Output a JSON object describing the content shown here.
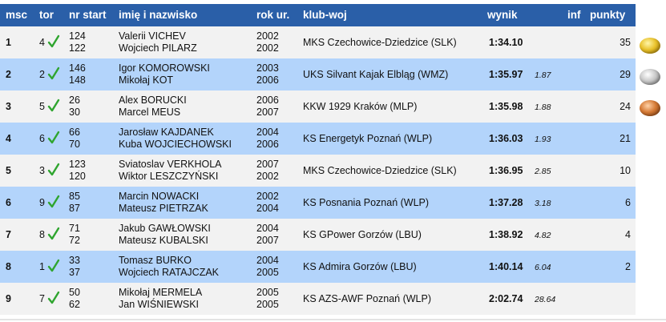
{
  "header": {
    "msc": "msc",
    "tor": "tor",
    "nr_start": "nr start",
    "name": "imię i nazwisko",
    "year": "rok ur.",
    "club": "klub-woj",
    "result": "wynik",
    "inf": "inf",
    "points": "punkty"
  },
  "rows": [
    {
      "pos": "1",
      "lane": "4",
      "nums": [
        "124",
        "122"
      ],
      "names": [
        "Valerii VICHEV",
        "Wojciech PILARZ"
      ],
      "years": [
        "2002",
        "2002"
      ],
      "club": "MKS Czechowice-Dziedzice (SLK)",
      "time": "1:34.10",
      "gap": "",
      "points": "35",
      "medal": "gold"
    },
    {
      "pos": "2",
      "lane": "2",
      "nums": [
        "146",
        "148"
      ],
      "names": [
        "Igor KOMOROWSKI",
        "Mikołaj KOT"
      ],
      "years": [
        "2003",
        "2006"
      ],
      "club": "UKS Silvant Kajak Elbląg (WMZ)",
      "time": "1:35.97",
      "gap": "1.87",
      "points": "29",
      "medal": "silver"
    },
    {
      "pos": "3",
      "lane": "5",
      "nums": [
        "26",
        "30"
      ],
      "names": [
        "Alex BORUCKI",
        "Marcel MEUS"
      ],
      "years": [
        "2006",
        "2007"
      ],
      "club": "KKW 1929 Kraków (MLP)",
      "time": "1:35.98",
      "gap": "1.88",
      "points": "24",
      "medal": "bronze"
    },
    {
      "pos": "4",
      "lane": "6",
      "nums": [
        "66",
        "70"
      ],
      "names": [
        "Jarosław KAJDANEK",
        "Kuba WOJCIECHOWSKI"
      ],
      "years": [
        "2004",
        "2006"
      ],
      "club": "KS Energetyk Poznań (WLP)",
      "time": "1:36.03",
      "gap": "1.93",
      "points": "21",
      "medal": ""
    },
    {
      "pos": "5",
      "lane": "3",
      "nums": [
        "123",
        "120"
      ],
      "names": [
        "Sviatoslav VERKHOLA",
        "Wiktor LESZCZYŃSKI"
      ],
      "years": [
        "2007",
        "2002"
      ],
      "club": "MKS Czechowice-Dziedzice (SLK)",
      "time": "1:36.95",
      "gap": "2.85",
      "points": "10",
      "medal": ""
    },
    {
      "pos": "6",
      "lane": "9",
      "nums": [
        "85",
        "87"
      ],
      "names": [
        "Marcin NOWACKI",
        "Mateusz PIETRZAK"
      ],
      "years": [
        "2002",
        "2004"
      ],
      "club": "KS Posnania Poznań (WLP)",
      "time": "1:37.28",
      "gap": "3.18",
      "points": "6",
      "medal": ""
    },
    {
      "pos": "7",
      "lane": "8",
      "nums": [
        "71",
        "72"
      ],
      "names": [
        "Jakub GAWŁOWSKI",
        "Mateusz KUBALSKI"
      ],
      "years": [
        "2004",
        "2007"
      ],
      "club": "KS GPower Gorzów (LBU)",
      "time": "1:38.92",
      "gap": "4.82",
      "points": "4",
      "medal": ""
    },
    {
      "pos": "8",
      "lane": "1",
      "nums": [
        "33",
        "37"
      ],
      "names": [
        "Tomasz BURKO",
        "Wojciech RATAJCZAK"
      ],
      "years": [
        "2004",
        "2005"
      ],
      "club": "KS Admira Gorzów (LBU)",
      "time": "1:40.14",
      "gap": "6.04",
      "points": "2",
      "medal": ""
    },
    {
      "pos": "9",
      "lane": "7",
      "nums": [
        "50",
        "62"
      ],
      "names": [
        "Mikołaj MERMELA",
        "Jan WIŚNIEWSKI"
      ],
      "years": [
        "2005",
        "2005"
      ],
      "club": "KS AZS-AWF Poznań (WLP)",
      "time": "2:02.74",
      "gap": "28.64",
      "points": "",
      "medal": ""
    }
  ],
  "colors": {
    "header_bg": "#2a5fa8",
    "row_odd": "#f2f2f2",
    "row_even": "#b3d4fb",
    "check": "#2fa52f"
  },
  "icons": {
    "lane_check": "check-icon",
    "medals": [
      "gold-medal-icon",
      "silver-medal-icon",
      "bronze-medal-icon"
    ]
  }
}
